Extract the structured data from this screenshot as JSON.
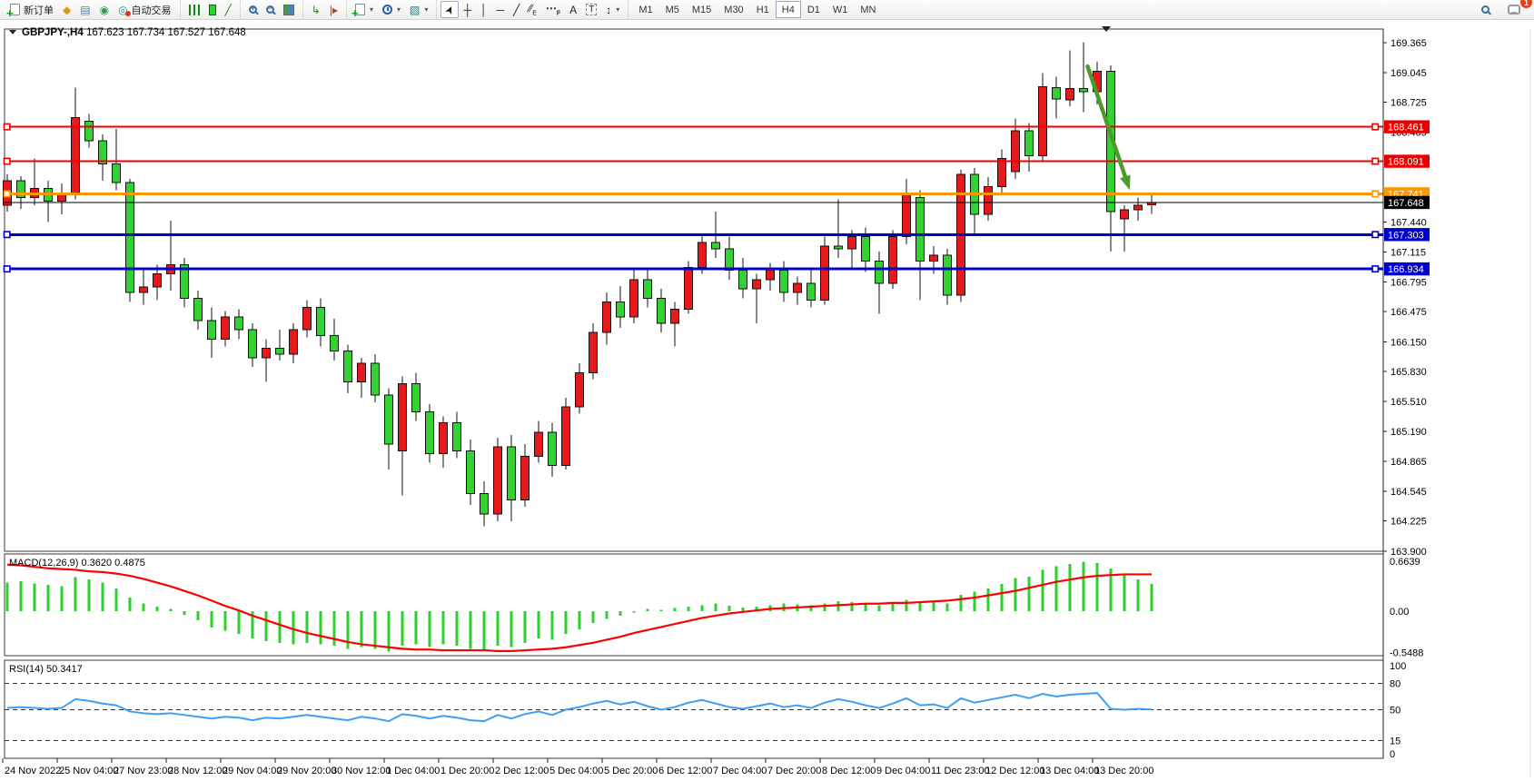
{
  "toolbar": {
    "new_order_label": "新订单",
    "auto_trading_label": "自动交易",
    "timeframes": [
      "M1",
      "M5",
      "M15",
      "M30",
      "H1",
      "H4",
      "D1",
      "W1",
      "MN"
    ],
    "active_timeframe": "H4",
    "notification_count": "1"
  },
  "chart_data": {
    "type": "candlestick",
    "symbol": "GBPJPY-",
    "timeframe": "H4",
    "title_text": "GBPJPY-,H4",
    "ohlc_display": "167.623 167.734 167.527 167.648",
    "current_price": 167.648,
    "current_price_label": "167.648",
    "up_color": "#e8191c",
    "down_color": "#33d233",
    "price_axis_ticks": [
      "169.365",
      "169.045",
      "168.725",
      "168.405",
      "167.440",
      "167.115",
      "166.795",
      "166.475",
      "166.150",
      "165.830",
      "165.510",
      "165.190",
      "164.865",
      "164.545",
      "164.225",
      "163.900"
    ],
    "time_labels": [
      "24 Nov 2022",
      "25 Nov 04:00",
      "27 Nov 23:00",
      "28 Nov 12:00",
      "29 Nov 04:00",
      "29 Nov 20:00",
      "30 Nov 12:00",
      "1 Dec 04:00",
      "1 Dec 20:00",
      "2 Dec 12:00",
      "5 Dec 04:00",
      "5 Dec 20:00",
      "6 Dec 12:00",
      "7 Dec 04:00",
      "7 Dec 20:00",
      "8 Dec 12:00",
      "9 Dec 04:00",
      "11 Dec 23:00",
      "12 Dec 12:00",
      "13 Dec 04:00",
      "13 Dec 20:00"
    ],
    "hlines": [
      {
        "price": 168.461,
        "label": "168.461",
        "color": "#ee0000",
        "thickness": 2
      },
      {
        "price": 168.091,
        "label": "168.091",
        "color": "#ee0000",
        "thickness": 2
      },
      {
        "price": 167.741,
        "label": "167.741",
        "color": "#ff9800",
        "thickness": 3
      },
      {
        "price": 167.303,
        "label": "167.303",
        "color": "#0000cd",
        "thickness": 3
      },
      {
        "price": 166.934,
        "label": "166.934",
        "color": "#0000cd",
        "thickness": 3
      }
    ],
    "candles": [
      [
        167.62,
        167.95,
        167.55,
        167.88
      ],
      [
        167.88,
        167.93,
        167.58,
        167.7
      ],
      [
        167.7,
        168.12,
        167.62,
        167.8
      ],
      [
        167.8,
        167.88,
        167.44,
        167.66
      ],
      [
        167.66,
        167.85,
        167.52,
        167.74
      ],
      [
        167.74,
        168.88,
        167.68,
        168.56
      ],
      [
        168.52,
        168.6,
        168.24,
        168.31
      ],
      [
        168.31,
        168.38,
        167.88,
        168.06
      ],
      [
        168.06,
        168.44,
        167.78,
        167.86
      ],
      [
        167.86,
        167.9,
        166.58,
        166.68
      ],
      [
        166.68,
        166.92,
        166.55,
        166.74
      ],
      [
        166.74,
        166.98,
        166.6,
        166.88
      ],
      [
        166.88,
        167.45,
        166.7,
        166.98
      ],
      [
        166.98,
        167.05,
        166.52,
        166.62
      ],
      [
        166.62,
        166.7,
        166.28,
        166.38
      ],
      [
        166.38,
        166.52,
        165.98,
        166.18
      ],
      [
        166.18,
        166.48,
        166.1,
        166.42
      ],
      [
        166.42,
        166.5,
        166.18,
        166.28
      ],
      [
        166.28,
        166.35,
        165.88,
        165.98
      ],
      [
        165.98,
        166.18,
        165.72,
        166.08
      ],
      [
        166.08,
        166.28,
        165.95,
        166.02
      ],
      [
        166.02,
        166.35,
        165.92,
        166.28
      ],
      [
        166.28,
        166.6,
        166.2,
        166.52
      ],
      [
        166.52,
        166.62,
        166.1,
        166.22
      ],
      [
        166.22,
        166.4,
        165.95,
        166.05
      ],
      [
        166.05,
        166.12,
        165.6,
        165.72
      ],
      [
        165.72,
        165.98,
        165.55,
        165.92
      ],
      [
        165.92,
        166.02,
        165.5,
        165.58
      ],
      [
        165.58,
        165.65,
        164.78,
        165.05
      ],
      [
        164.98,
        165.78,
        164.5,
        165.7
      ],
      [
        165.7,
        165.82,
        165.3,
        165.4
      ],
      [
        165.4,
        165.48,
        164.85,
        164.95
      ],
      [
        164.95,
        165.35,
        164.8,
        165.28
      ],
      [
        165.28,
        165.4,
        164.9,
        164.98
      ],
      [
        164.98,
        165.1,
        164.4,
        164.52
      ],
      [
        164.52,
        164.65,
        164.17,
        164.3
      ],
      [
        164.3,
        165.12,
        164.22,
        165.02
      ],
      [
        165.02,
        165.15,
        164.22,
        164.45
      ],
      [
        164.45,
        165.05,
        164.38,
        164.92
      ],
      [
        164.92,
        165.3,
        164.85,
        165.18
      ],
      [
        165.18,
        165.28,
        164.7,
        164.82
      ],
      [
        164.82,
        165.55,
        164.78,
        165.45
      ],
      [
        165.45,
        165.92,
        165.38,
        165.82
      ],
      [
        165.82,
        166.35,
        165.75,
        166.25
      ],
      [
        166.25,
        166.68,
        166.12,
        166.58
      ],
      [
        166.58,
        166.75,
        166.3,
        166.42
      ],
      [
        166.42,
        166.92,
        166.35,
        166.82
      ],
      [
        166.82,
        166.95,
        166.52,
        166.62
      ],
      [
        166.62,
        166.72,
        166.25,
        166.35
      ],
      [
        166.35,
        166.58,
        166.1,
        166.5
      ],
      [
        166.5,
        167.02,
        166.45,
        166.95
      ],
      [
        166.95,
        167.3,
        166.88,
        167.22
      ],
      [
        167.22,
        167.55,
        167.05,
        167.15
      ],
      [
        167.15,
        167.28,
        166.82,
        166.92
      ],
      [
        166.92,
        167.05,
        166.62,
        166.72
      ],
      [
        166.72,
        166.88,
        166.35,
        166.82
      ],
      [
        166.82,
        167.0,
        166.7,
        166.92
      ],
      [
        166.92,
        167.02,
        166.58,
        166.68
      ],
      [
        166.68,
        166.85,
        166.55,
        166.78
      ],
      [
        166.78,
        166.92,
        166.52,
        166.6
      ],
      [
        166.6,
        167.28,
        166.55,
        167.18
      ],
      [
        167.18,
        167.68,
        167.05,
        167.15
      ],
      [
        167.15,
        167.35,
        166.95,
        167.28
      ],
      [
        167.28,
        167.38,
        166.9,
        167.02
      ],
      [
        167.02,
        167.12,
        166.45,
        166.78
      ],
      [
        166.78,
        167.35,
        166.72,
        167.28
      ],
      [
        167.28,
        167.9,
        167.2,
        167.75
      ],
      [
        167.7,
        167.78,
        166.6,
        167.02
      ],
      [
        167.02,
        167.18,
        166.88,
        167.08
      ],
      [
        167.08,
        167.15,
        166.55,
        166.65
      ],
      [
        166.65,
        168.0,
        166.58,
        167.95
      ],
      [
        167.95,
        168.02,
        167.3,
        167.52
      ],
      [
        167.52,
        167.92,
        167.45,
        167.82
      ],
      [
        167.82,
        168.22,
        167.75,
        168.12
      ],
      [
        167.98,
        168.55,
        167.9,
        168.42
      ],
      [
        168.42,
        168.5,
        167.98,
        168.15
      ],
      [
        168.15,
        169.04,
        168.1,
        168.89
      ],
      [
        168.88,
        169.0,
        168.55,
        168.76
      ],
      [
        168.75,
        169.28,
        168.68,
        168.87
      ],
      [
        168.87,
        169.37,
        168.62,
        168.84
      ],
      [
        168.84,
        169.16,
        168.7,
        169.06
      ],
      [
        169.06,
        169.12,
        167.12,
        167.55
      ],
      [
        167.47,
        167.62,
        167.12,
        167.57
      ],
      [
        167.57,
        167.7,
        167.45,
        167.62
      ],
      [
        167.623,
        167.734,
        167.527,
        167.648
      ]
    ],
    "indicators": {
      "macd": {
        "label": "MACD(12,26,9)",
        "values_text": "0.3620 0.4875",
        "axis_ticks": [
          "0.6639",
          "0.00",
          "-0.5488"
        ],
        "hist_color": "#2bd12b",
        "signal_color": "#ff0000",
        "hist": [
          0.38,
          0.4,
          0.37,
          0.35,
          0.33,
          0.45,
          0.42,
          0.38,
          0.3,
          0.18,
          0.1,
          0.06,
          0.03,
          -0.05,
          -0.12,
          -0.22,
          -0.26,
          -0.3,
          -0.36,
          -0.4,
          -0.42,
          -0.44,
          -0.42,
          -0.44,
          -0.46,
          -0.5,
          -0.48,
          -0.5,
          -0.54,
          -0.46,
          -0.44,
          -0.48,
          -0.44,
          -0.46,
          -0.5,
          -0.52,
          -0.46,
          -0.48,
          -0.42,
          -0.36,
          -0.38,
          -0.3,
          -0.24,
          -0.16,
          -0.1,
          -0.06,
          -0.02,
          0.03,
          0.02,
          0.04,
          0.06,
          0.08,
          0.1,
          0.07,
          0.05,
          0.06,
          0.08,
          0.1,
          0.09,
          0.08,
          0.1,
          0.13,
          0.12,
          0.1,
          0.08,
          0.1,
          0.15,
          0.12,
          0.12,
          0.1,
          0.22,
          0.26,
          0.3,
          0.36,
          0.44,
          0.46,
          0.55,
          0.6,
          0.63,
          0.66,
          0.64,
          0.57,
          0.48,
          0.42,
          0.36
        ],
        "signal": [
          0.62,
          0.61,
          0.59,
          0.57,
          0.56,
          0.55,
          0.53,
          0.52,
          0.5,
          0.47,
          0.43,
          0.38,
          0.33,
          0.27,
          0.21,
          0.14,
          0.07,
          0.01,
          -0.06,
          -0.12,
          -0.18,
          -0.24,
          -0.29,
          -0.33,
          -0.37,
          -0.41,
          -0.44,
          -0.46,
          -0.48,
          -0.5,
          -0.51,
          -0.51,
          -0.52,
          -0.52,
          -0.52,
          -0.52,
          -0.53,
          -0.53,
          -0.52,
          -0.51,
          -0.5,
          -0.48,
          -0.45,
          -0.42,
          -0.38,
          -0.34,
          -0.29,
          -0.25,
          -0.21,
          -0.17,
          -0.13,
          -0.09,
          -0.06,
          -0.03,
          -0.01,
          0.01,
          0.03,
          0.04,
          0.05,
          0.06,
          0.07,
          0.08,
          0.09,
          0.1,
          0.1,
          0.11,
          0.11,
          0.12,
          0.13,
          0.14,
          0.16,
          0.18,
          0.21,
          0.24,
          0.27,
          0.31,
          0.35,
          0.39,
          0.42,
          0.45,
          0.47,
          0.48,
          0.49,
          0.49,
          0.49
        ]
      },
      "rsi": {
        "label": "RSI(14)",
        "value_text": "50.3417",
        "axis_ticks": [
          "100",
          "80",
          "50",
          "15",
          "0"
        ],
        "levels": [
          80,
          50,
          15
        ],
        "line_color": "#3f9ff2",
        "values": [
          52,
          53,
          52,
          51,
          52,
          62,
          60,
          57,
          55,
          48,
          46,
          45,
          46,
          44,
          42,
          40,
          42,
          41,
          38,
          41,
          40,
          42,
          44,
          42,
          40,
          38,
          42,
          40,
          37,
          45,
          43,
          40,
          43,
          41,
          38,
          37,
          44,
          40,
          45,
          48,
          44,
          50,
          53,
          57,
          60,
          56,
          59,
          54,
          50,
          53,
          58,
          61,
          57,
          53,
          51,
          54,
          57,
          53,
          55,
          52,
          58,
          62,
          59,
          55,
          52,
          57,
          63,
          55,
          56,
          52,
          63,
          58,
          61,
          64,
          67,
          63,
          68,
          65,
          67,
          68,
          69,
          51,
          50,
          51,
          50.3
        ]
      }
    },
    "annotation_arrow": {
      "from": {
        "index": 79.3,
        "price": 169.11
      },
      "to": {
        "index": 82.4,
        "price": 167.78
      },
      "color": "#4d9a2d"
    }
  }
}
